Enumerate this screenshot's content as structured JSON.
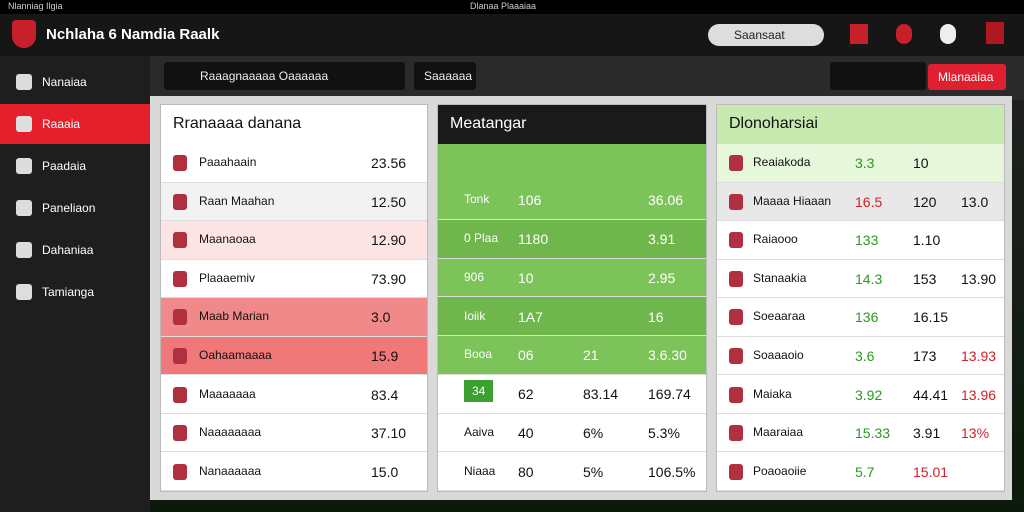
{
  "titlebar": {
    "left": "Nlanniag Ilgia",
    "center": "Dlanaa Plaaaiaa"
  },
  "header": {
    "brand": "Nchlaha 6 Namdia Raalk",
    "search": "Saansaat"
  },
  "sidebar": [
    "Nanaiaa",
    "Raaaia",
    "Paadaia",
    "Paneliaon",
    "Dahaniaa",
    "Tamianga"
  ],
  "toolbar": {
    "dropdown": "Raaagnaaaaa Oaaaaaa",
    "button": "Saaaaaa",
    "action": "Mlanaaiaa"
  },
  "panels": [
    {
      "title": "Rranaaaa danana",
      "rows": [
        [
          "Paaahaain",
          "23.56"
        ],
        [
          "Raan Maahan",
          "12.50"
        ],
        [
          "Maanaoaa",
          "12.90"
        ],
        [
          "Plaaaemiv",
          "73.90"
        ],
        [
          "Maab Marian",
          "3.0"
        ],
        [
          "Oahaamaaaa",
          "15.9"
        ],
        [
          "Maaaaaaa",
          "83.4"
        ],
        [
          "Naaaaaaaa",
          "37.10"
        ],
        [
          "Nanaaaaaa",
          "15.0"
        ]
      ]
    },
    {
      "title": "Meatangar",
      "rows": [
        [
          "Tonk",
          "106",
          "36.06"
        ],
        [
          "0 Plaa",
          "1180",
          "3.91"
        ],
        [
          "906",
          "10",
          "2.95"
        ],
        [
          "Ioiik",
          "1A7",
          "16"
        ],
        [
          "Booa",
          "06",
          "21",
          "3.6.30"
        ],
        [
          "34",
          "62",
          "83.14",
          "169.74"
        ],
        [
          "Aaiva",
          "40",
          "6%",
          "5.3%"
        ],
        [
          "Niaaa",
          "80",
          "5%",
          "106.5%"
        ]
      ]
    },
    {
      "title": "Dlonoharsiai",
      "rows": [
        [
          "Reaiakoda",
          "3.3",
          "10"
        ],
        [
          "Maaaa Hiaaan",
          "16.5",
          "120",
          "13.0"
        ],
        [
          "Raiaooo",
          "133",
          "1.10"
        ],
        [
          "Stanaakia",
          "14.3",
          "153",
          "13.90"
        ],
        [
          "Soeaaraa",
          "136",
          "16.15"
        ],
        [
          "Soaaaoio",
          "3.6",
          "173",
          "13.93"
        ],
        [
          "Maiaka",
          "3.92",
          "44.41",
          "13.96"
        ],
        [
          "Maaraiaa",
          "15.33",
          "3.91",
          "13%"
        ],
        [
          "Poaoaoiie",
          "5.7",
          "15.01"
        ]
      ]
    }
  ]
}
